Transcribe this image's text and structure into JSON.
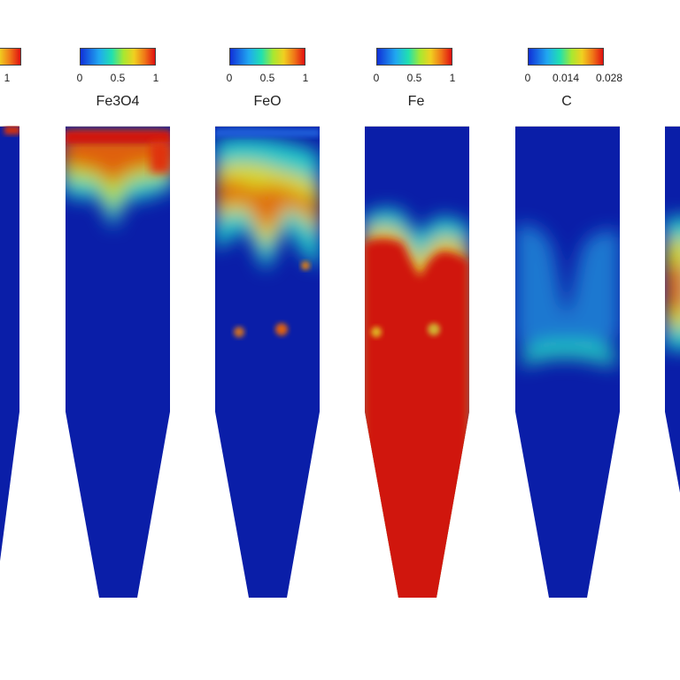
{
  "panels": [
    {
      "name": "",
      "ticks": [
        "",
        "1"
      ]
    },
    {
      "name": "Fe3O4",
      "ticks": [
        "0",
        "0.5",
        "1"
      ]
    },
    {
      "name": "FeO",
      "ticks": [
        "0",
        "0.5",
        "1"
      ]
    },
    {
      "name": "Fe",
      "ticks": [
        "0",
        "0.5",
        "1"
      ]
    },
    {
      "name": "C",
      "ticks": [
        "0",
        "0.014",
        "0.028"
      ]
    },
    {
      "name": "",
      "ticks": []
    }
  ],
  "colormap": "jet",
  "colors": {
    "low": "#0a1ea8",
    "high": "#d01408",
    "background": "#ffffff"
  }
}
